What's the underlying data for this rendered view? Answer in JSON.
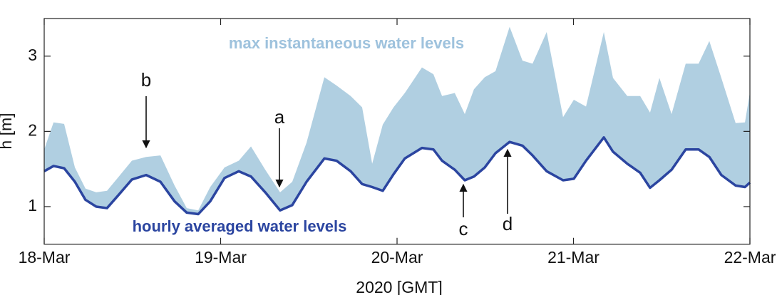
{
  "chart_data": {
    "type": "area-line",
    "xlabel": "2020 [GMT]",
    "ylabel": "h [m]",
    "x": [
      0,
      0.053,
      0.113,
      0.174,
      0.234,
      0.295,
      0.356,
      0.416,
      0.497,
      0.578,
      0.659,
      0.739,
      0.808,
      0.873,
      0.941,
      1.022,
      1.103,
      1.172,
      1.253,
      1.337,
      1.406,
      1.487,
      1.588,
      1.657,
      1.737,
      1.802,
      1.859,
      1.919,
      1.98,
      2.044,
      2.141,
      2.206,
      2.255,
      2.327,
      2.384,
      2.436,
      2.497,
      2.558,
      2.638,
      2.711,
      2.768,
      2.848,
      2.941,
      3.002,
      3.071,
      3.172,
      3.224,
      3.305,
      3.378,
      3.434,
      3.487,
      3.556,
      3.636,
      3.709,
      3.77,
      3.838,
      3.919,
      3.972,
      4.0
    ],
    "series": [
      {
        "name": "hourly averaged water levels",
        "color": "#2b45a0",
        "values": [
          1.47,
          1.54,
          1.51,
          1.33,
          1.09,
          1.0,
          0.98,
          1.14,
          1.36,
          1.42,
          1.33,
          1.07,
          0.92,
          0.9,
          1.07,
          1.38,
          1.47,
          1.4,
          1.19,
          0.95,
          1.02,
          1.33,
          1.64,
          1.61,
          1.47,
          1.3,
          1.26,
          1.21,
          1.43,
          1.64,
          1.78,
          1.76,
          1.61,
          1.49,
          1.35,
          1.4,
          1.52,
          1.71,
          1.86,
          1.81,
          1.68,
          1.47,
          1.35,
          1.37,
          1.61,
          1.92,
          1.73,
          1.57,
          1.45,
          1.25,
          1.35,
          1.49,
          1.76,
          1.76,
          1.66,
          1.42,
          1.28,
          1.26,
          1.32
        ]
      },
      {
        "name": "max instantaneous water levels",
        "color": "#b0cfe1",
        "values": [
          1.76,
          2.12,
          2.1,
          1.52,
          1.24,
          1.19,
          1.21,
          1.38,
          1.61,
          1.66,
          1.68,
          1.28,
          0.98,
          0.95,
          1.26,
          1.52,
          1.61,
          1.8,
          1.49,
          1.19,
          1.33,
          1.85,
          2.72,
          2.61,
          2.47,
          2.32,
          1.57,
          2.09,
          2.32,
          2.51,
          2.85,
          2.76,
          2.47,
          2.51,
          2.23,
          2.56,
          2.72,
          2.8,
          3.39,
          2.94,
          2.9,
          3.32,
          2.19,
          2.42,
          2.33,
          3.32,
          2.71,
          2.47,
          2.47,
          2.25,
          2.71,
          2.23,
          2.9,
          2.9,
          3.2,
          2.71,
          2.11,
          2.12,
          2.52
        ]
      }
    ],
    "xlim": [
      0,
      4
    ],
    "xticks": [
      {
        "value": 0,
        "label": "18-Mar"
      },
      {
        "value": 1,
        "label": "19-Mar"
      },
      {
        "value": 2,
        "label": "20-Mar"
      },
      {
        "value": 3,
        "label": "21-Mar"
      },
      {
        "value": 4,
        "label": "22-Mar"
      }
    ],
    "ylim": [
      0.5,
      3.5
    ],
    "yticks": [
      1,
      2,
      3
    ],
    "grid": false,
    "annotations": [
      "a",
      "b",
      "c",
      "d"
    ]
  }
}
